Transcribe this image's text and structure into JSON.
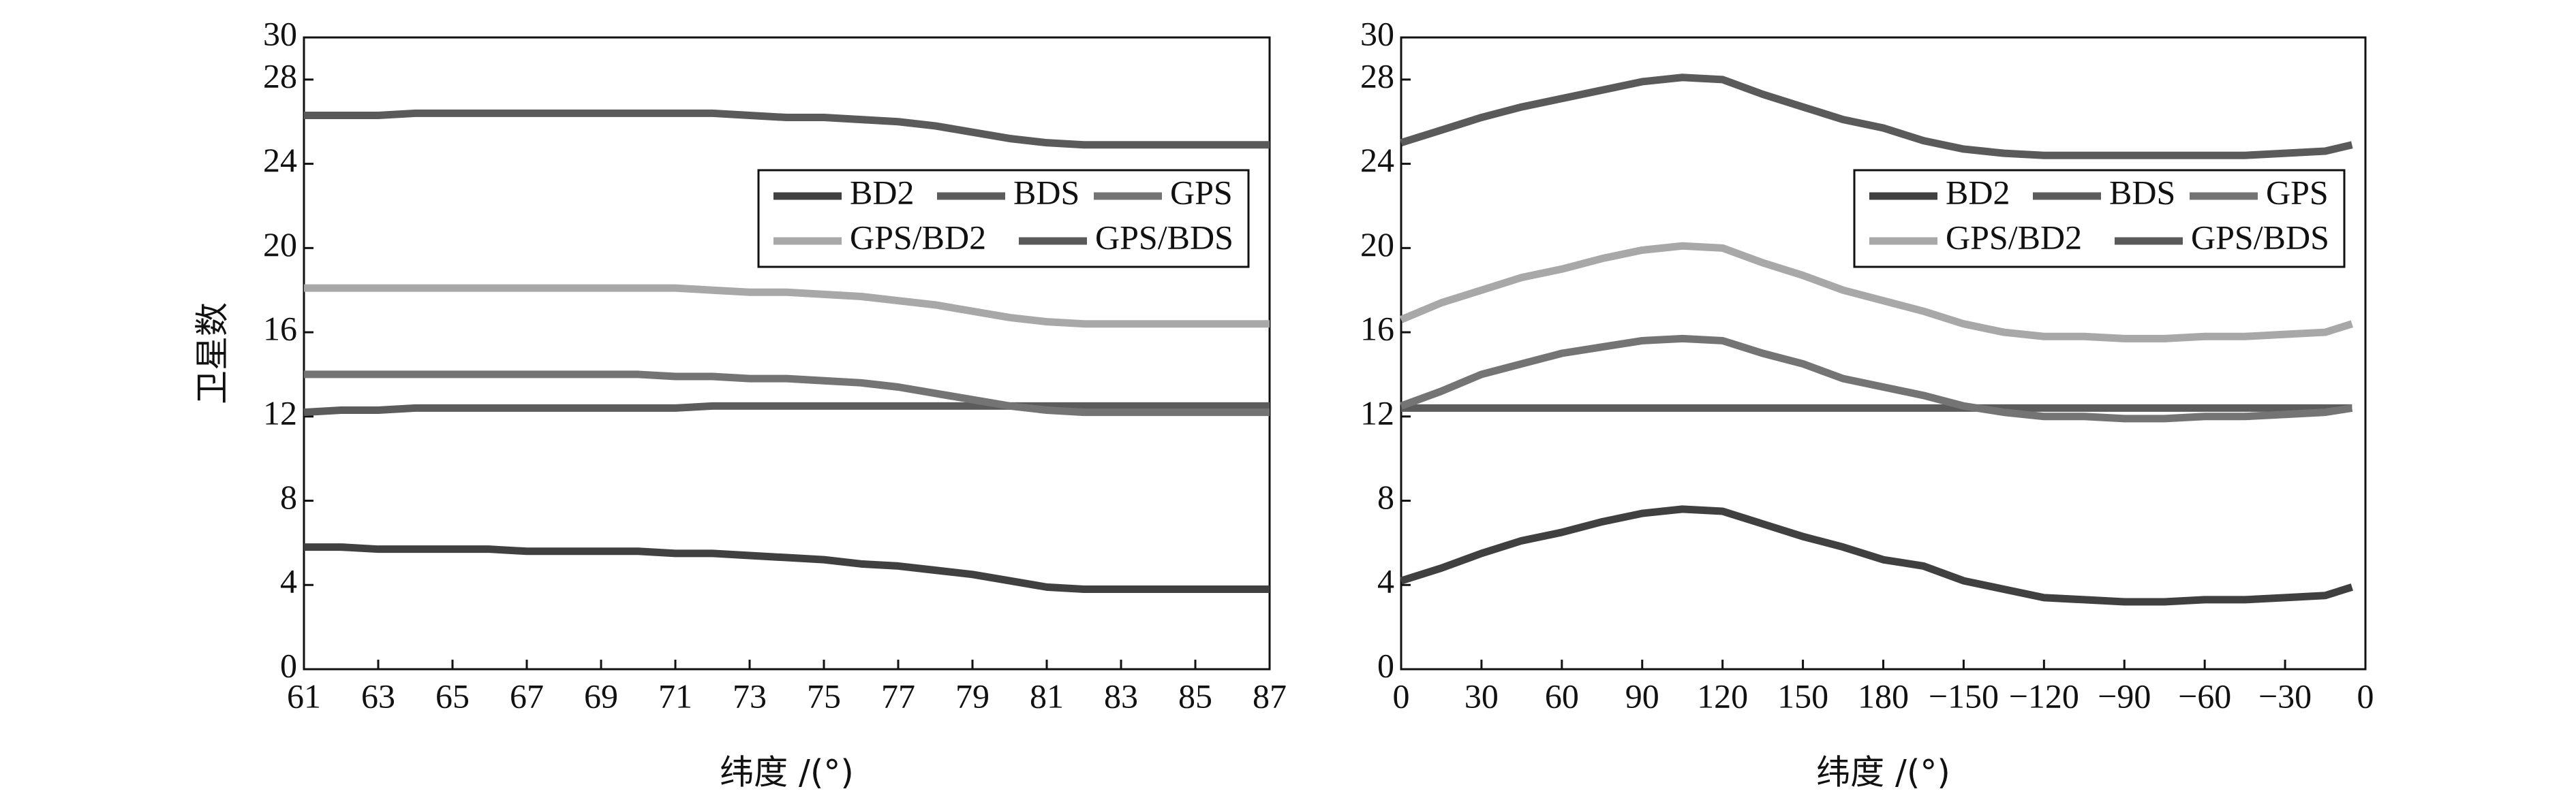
{
  "chart_data": [
    {
      "type": "line",
      "x_label": "纬度 /(°)",
      "y_label": "卫星数",
      "x": [
        61,
        62,
        63,
        64,
        65,
        66,
        67,
        68,
        69,
        70,
        71,
        72,
        73,
        74,
        75,
        76,
        77,
        78,
        79,
        80,
        81,
        82,
        83,
        84,
        85,
        86,
        87
      ],
      "xlim": [
        61,
        87
      ],
      "xticks": [
        61,
        63,
        65,
        67,
        69,
        71,
        73,
        75,
        77,
        79,
        81,
        83,
        85,
        87
      ],
      "ylim": [
        0,
        30
      ],
      "yticks": [
        0,
        4,
        8,
        12,
        16,
        20,
        24,
        28,
        30
      ],
      "legend": "upper right",
      "series": [
        {
          "name": "BD2",
          "color": "#404040",
          "values": [
            5.8,
            5.8,
            5.7,
            5.7,
            5.7,
            5.7,
            5.6,
            5.6,
            5.6,
            5.6,
            5.5,
            5.5,
            5.4,
            5.3,
            5.2,
            5.0,
            4.9,
            4.7,
            4.5,
            4.2,
            3.9,
            3.8,
            3.8,
            3.8,
            3.8,
            3.8,
            3.8
          ]
        },
        {
          "name": "BDS",
          "color": "#5c5c5c",
          "values": [
            12.2,
            12.3,
            12.3,
            12.4,
            12.4,
            12.4,
            12.4,
            12.4,
            12.4,
            12.4,
            12.4,
            12.5,
            12.5,
            12.5,
            12.5,
            12.5,
            12.5,
            12.5,
            12.5,
            12.5,
            12.5,
            12.5,
            12.5,
            12.5,
            12.5,
            12.5,
            12.5
          ]
        },
        {
          "name": "GPS",
          "color": "#747474",
          "values": [
            14.0,
            14.0,
            14.0,
            14.0,
            14.0,
            14.0,
            14.0,
            14.0,
            14.0,
            14.0,
            13.9,
            13.9,
            13.8,
            13.8,
            13.7,
            13.6,
            13.4,
            13.1,
            12.8,
            12.5,
            12.3,
            12.2,
            12.2,
            12.2,
            12.2,
            12.2,
            12.2
          ]
        },
        {
          "name": "GPS/BD2",
          "color": "#a8a8a8",
          "values": [
            18.1,
            18.1,
            18.1,
            18.1,
            18.1,
            18.1,
            18.1,
            18.1,
            18.1,
            18.1,
            18.1,
            18.0,
            17.9,
            17.9,
            17.8,
            17.7,
            17.5,
            17.3,
            17.0,
            16.7,
            16.5,
            16.4,
            16.4,
            16.4,
            16.4,
            16.4,
            16.4
          ]
        },
        {
          "name": "GPS/BDS",
          "color": "#5a5a5a",
          "values": [
            26.3,
            26.3,
            26.3,
            26.4,
            26.4,
            26.4,
            26.4,
            26.4,
            26.4,
            26.4,
            26.4,
            26.4,
            26.3,
            26.2,
            26.2,
            26.1,
            26.0,
            25.8,
            25.5,
            25.2,
            25.0,
            24.9,
            24.9,
            24.9,
            24.9,
            24.9,
            24.9
          ]
        }
      ]
    },
    {
      "type": "line",
      "x_label": "纬度 /(°)",
      "x": [
        0,
        15,
        30,
        45,
        60,
        75,
        90,
        105,
        120,
        135,
        150,
        165,
        180,
        195,
        210,
        225,
        240,
        255,
        270,
        285,
        300,
        315,
        330,
        345,
        355
      ],
      "xlim": [
        0,
        360
      ],
      "xticks": [
        0,
        30,
        60,
        90,
        120,
        150,
        180,
        {
          "value": 210,
          "label": "−150"
        },
        {
          "value": 240,
          "label": "−120"
        },
        {
          "value": 270,
          "label": "−90"
        },
        {
          "value": 300,
          "label": "−60"
        },
        {
          "value": 330,
          "label": "−30"
        },
        {
          "value": 360,
          "label": "0"
        }
      ],
      "ylim": [
        0,
        30
      ],
      "yticks": [
        0,
        4,
        8,
        12,
        16,
        20,
        24,
        28,
        30
      ],
      "legend": "upper right",
      "series": [
        {
          "name": "BD2",
          "color": "#404040",
          "values": [
            4.2,
            4.8,
            5.5,
            6.1,
            6.5,
            7.0,
            7.4,
            7.6,
            7.5,
            6.9,
            6.3,
            5.8,
            5.2,
            4.9,
            4.2,
            3.8,
            3.4,
            3.3,
            3.2,
            3.2,
            3.3,
            3.3,
            3.4,
            3.5,
            3.9
          ]
        },
        {
          "name": "BDS",
          "color": "#5c5c5c",
          "values": [
            12.4,
            12.4,
            12.4,
            12.4,
            12.4,
            12.4,
            12.4,
            12.4,
            12.4,
            12.4,
            12.4,
            12.4,
            12.4,
            12.4,
            12.4,
            12.4,
            12.4,
            12.4,
            12.4,
            12.4,
            12.4,
            12.4,
            12.4,
            12.4,
            12.4
          ]
        },
        {
          "name": "GPS",
          "color": "#747474",
          "values": [
            12.5,
            13.2,
            14.0,
            14.5,
            15.0,
            15.3,
            15.6,
            15.7,
            15.6,
            15.0,
            14.5,
            13.8,
            13.4,
            13.0,
            12.5,
            12.2,
            12.0,
            12.0,
            11.9,
            11.9,
            12.0,
            12.0,
            12.1,
            12.2,
            12.4
          ]
        },
        {
          "name": "GPS/BD2",
          "color": "#a8a8a8",
          "values": [
            16.6,
            17.4,
            18.0,
            18.6,
            19.0,
            19.5,
            19.9,
            20.1,
            20.0,
            19.3,
            18.7,
            18.0,
            17.5,
            17.0,
            16.4,
            16.0,
            15.8,
            15.8,
            15.7,
            15.7,
            15.8,
            15.8,
            15.9,
            16.0,
            16.4
          ]
        },
        {
          "name": "GPS/BDS",
          "color": "#5a5a5a",
          "values": [
            25.0,
            25.6,
            26.2,
            26.7,
            27.1,
            27.5,
            27.9,
            28.1,
            28.0,
            27.3,
            26.7,
            26.1,
            25.7,
            25.1,
            24.7,
            24.5,
            24.4,
            24.4,
            24.4,
            24.4,
            24.4,
            24.4,
            24.5,
            24.6,
            24.9
          ]
        }
      ]
    }
  ]
}
